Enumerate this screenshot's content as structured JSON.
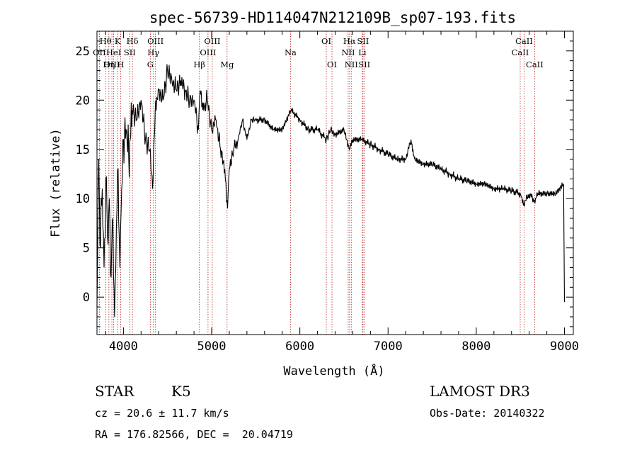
{
  "chart_data": {
    "type": "line",
    "title": "spec-56739-HD114047N212109B_sp07-193.fits",
    "xlabel": "Wavelength (Å)",
    "ylabel": "Flux (relative)",
    "xlim": [
      3700,
      9100
    ],
    "ylim": [
      -3.8,
      27
    ],
    "xticks": [
      4000,
      5000,
      6000,
      7000,
      8000,
      9000
    ],
    "yticks": [
      0,
      5,
      10,
      15,
      20,
      25
    ],
    "series": [
      {
        "name": "spectrum",
        "x": [
          3700,
          3720,
          3740,
          3760,
          3780,
          3800,
          3820,
          3840,
          3860,
          3880,
          3900,
          3920,
          3940,
          3960,
          3980,
          4000,
          4030,
          4060,
          4100,
          4150,
          4200,
          4250,
          4300,
          4330,
          4360,
          4400,
          4450,
          4500,
          4550,
          4600,
          4650,
          4700,
          4750,
          4800,
          4850,
          4870,
          4900,
          4950,
          5000,
          5050,
          5100,
          5150,
          5180,
          5200,
          5250,
          5300,
          5350,
          5400,
          5450,
          5500,
          5600,
          5700,
          5800,
          5900,
          6000,
          6100,
          6200,
          6300,
          6350,
          6400,
          6500,
          6560,
          6600,
          6700,
          6800,
          6900,
          7000,
          7100,
          7200,
          7260,
          7300,
          7400,
          7500,
          7600,
          7700,
          7800,
          7900,
          8000,
          8100,
          8200,
          8300,
          8400,
          8500,
          8540,
          8600,
          8660,
          8700,
          8800,
          8900,
          8990,
          9000
        ],
        "y": [
          -1,
          14,
          5,
          11,
          3,
          12,
          6,
          10,
          2,
          8,
          -2,
          7,
          13,
          3,
          11,
          16,
          17,
          14,
          19,
          18,
          20,
          16,
          15,
          11,
          19,
          21,
          20,
          23,
          22,
          21,
          22,
          21,
          20,
          20,
          17,
          21,
          19,
          20,
          17,
          18,
          15,
          13,
          9,
          13,
          15,
          16,
          18,
          16,
          18,
          18,
          18,
          17,
          17,
          19,
          18,
          17,
          17,
          16,
          17,
          16.5,
          17,
          15,
          16,
          16,
          15.5,
          15,
          14.5,
          14,
          14,
          16,
          14,
          13.5,
          13.5,
          13,
          12.5,
          12,
          11.8,
          11.5,
          11.5,
          11,
          11,
          10.8,
          10.5,
          9.5,
          10.5,
          9.8,
          10.5,
          10.5,
          10.5,
          11.5,
          -0.5
        ]
      }
    ],
    "line_annotations": [
      {
        "label": "Hθ",
        "x": 3798,
        "row": 1
      },
      {
        "label": "OII",
        "x": 3727,
        "row": 2
      },
      {
        "label": "OIII",
        "x": 3869,
        "row": 3
      },
      {
        "label": "K",
        "x": 3934,
        "row": 1
      },
      {
        "label": "HeI",
        "x": 3889,
        "row": 2
      },
      {
        "label": "Hη",
        "x": 3835,
        "row": 3
      },
      {
        "label": "SII",
        "x": 4072,
        "row": 2
      },
      {
        "label": "H",
        "x": 3969,
        "row": 3
      },
      {
        "label": "Hδ",
        "x": 4102,
        "row": 1
      },
      {
        "label": "OIII",
        "x": 4363,
        "row": 1
      },
      {
        "label": "Hγ",
        "x": 4340,
        "row": 2
      },
      {
        "label": "G",
        "x": 4305,
        "row": 3
      },
      {
        "label": "Hβ",
        "x": 4861,
        "row": 3
      },
      {
        "label": "OIII",
        "x": 5007,
        "row": 1
      },
      {
        "label": "OIII",
        "x": 4959,
        "row": 2
      },
      {
        "label": "Mg",
        "x": 5175,
        "row": 3
      },
      {
        "label": "Na",
        "x": 5894,
        "row": 2
      },
      {
        "label": "OI",
        "x": 6300,
        "row": 1
      },
      {
        "label": "OI",
        "x": 6364,
        "row": 3
      },
      {
        "label": "Hα",
        "x": 6563,
        "row": 1
      },
      {
        "label": "SII",
        "x": 6716,
        "row": 1
      },
      {
        "label": "NII",
        "x": 6548,
        "row": 2
      },
      {
        "label": "Li",
        "x": 6708,
        "row": 2
      },
      {
        "label": "NII",
        "x": 6583,
        "row": 3
      },
      {
        "label": "SII",
        "x": 6731,
        "row": 3
      },
      {
        "label": "CaII",
        "x": 8542,
        "row": 1
      },
      {
        "label": "CaII",
        "x": 8498,
        "row": 2
      },
      {
        "label": "CaII",
        "x": 8662,
        "row": 3
      }
    ]
  },
  "info": {
    "object_class": "STAR",
    "subclass": "K5",
    "cz": "cz = 20.6 ± 11.7 km/s",
    "coords": "RA = 176.82566, DEC =  20.04719",
    "survey": "LAMOST DR3",
    "obs_date": "Obs-Date: 20140322"
  },
  "colors": {
    "line_marker": "#b22222",
    "spectrum": "#000000",
    "axis": "#000000"
  }
}
